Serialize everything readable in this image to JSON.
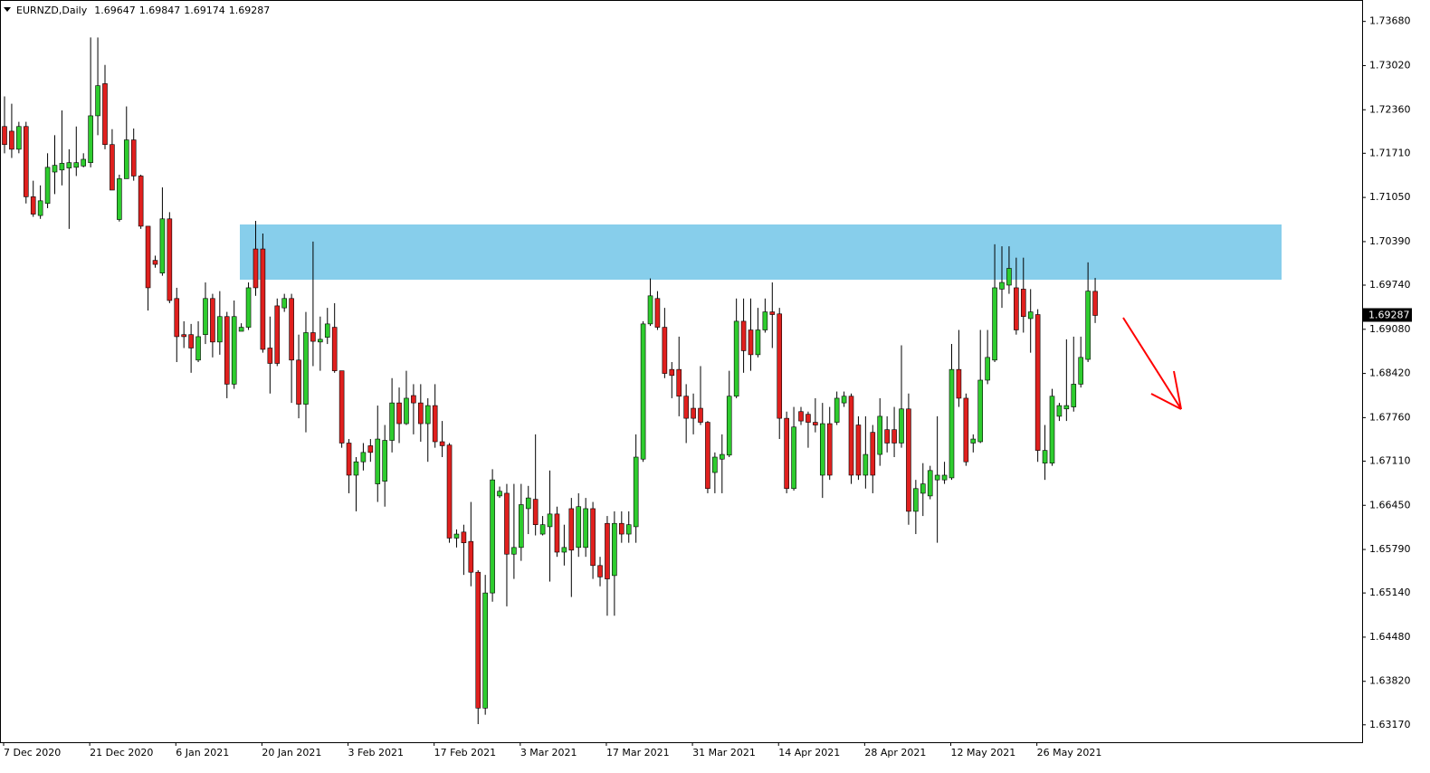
{
  "chart_data": {
    "type": "candlestick",
    "title": "EURNZD,Daily",
    "categories": [
      "7 Dec 2020",
      null,
      null,
      null,
      null,
      null,
      null,
      null,
      null,
      null,
      null,
      null,
      "21 Dec 2020",
      null,
      null,
      null,
      null,
      null,
      null,
      null,
      null,
      null,
      null,
      null,
      "6 Jan 2021",
      null,
      null,
      null,
      null,
      null,
      null,
      null,
      null,
      null,
      null,
      null,
      "20 Jan 2021",
      null,
      null,
      null,
      null,
      null,
      null,
      null,
      null,
      null,
      null,
      null,
      "3 Feb 2021",
      null,
      null,
      null,
      null,
      null,
      null,
      null,
      null,
      null,
      null,
      null,
      "17 Feb 2021",
      null,
      null,
      null,
      null,
      null,
      null,
      null,
      null,
      null,
      null,
      null,
      "3 Mar 2021",
      null,
      null,
      null,
      null,
      null,
      null,
      null,
      null,
      null,
      null,
      null,
      "17 Mar 2021",
      null,
      null,
      null,
      null,
      null,
      null,
      null,
      null,
      null,
      null,
      null,
      "31 Mar 2021",
      null,
      null,
      null,
      null,
      null,
      null,
      null,
      null,
      null,
      null,
      null,
      "14 Apr 2021",
      null,
      null,
      null,
      null,
      null,
      null,
      null,
      null,
      null,
      null,
      null,
      "28 Apr 2021",
      null,
      null,
      null,
      null,
      null,
      null,
      null,
      null,
      null,
      null,
      null,
      "12 May 2021",
      null,
      null,
      null,
      null,
      null,
      null,
      null,
      null,
      null,
      null,
      null,
      "26 May 2021",
      null,
      null,
      null,
      null,
      null,
      null,
      null,
      null
    ],
    "open": [
      1.7211,
      1.7204,
      1.7177,
      1.7211,
      1.7106,
      1.7078,
      1.7096,
      1.7143,
      1.7146,
      1.7149,
      1.715,
      1.7152,
      1.7157,
      1.7227,
      1.7275,
      1.7184,
      1.7072,
      1.7133,
      1.7191,
      1.7137,
      1.7062,
      1.7011,
      1.6992,
      1.7073,
      1.6954,
      1.69,
      1.69,
      1.6862,
      1.69,
      1.6954,
      1.6889,
      1.6927,
      1.6826,
      1.6905,
      1.6911,
      1.7028,
      1.7028,
      1.688,
      1.6943,
      1.694,
      1.6954,
      1.6862,
      1.6796,
      1.6903,
      1.6889,
      1.6896,
      1.6911,
      1.6846,
      1.6738,
      1.669,
      1.671,
      1.6734,
      1.6677,
      1.6681,
      1.6742,
      1.6798,
      1.6767,
      1.6809,
      1.6798,
      1.6767,
      1.6794,
      1.674,
      1.6735,
      1.6596,
      1.6605,
      1.6591,
      1.6545,
      1.6342,
      1.6514,
      1.6659,
      1.6663,
      1.6572,
      1.6582,
      1.664,
      1.6654,
      1.6602,
      1.6613,
      1.6632,
      1.6575,
      1.664,
      1.6582,
      1.6582,
      1.664,
      1.6555,
      1.6618,
      1.654,
      1.6618,
      1.6602,
      1.6613,
      1.6714,
      1.6916,
      1.6954,
      1.6911,
      1.6848,
      1.6848,
      1.6808,
      1.679,
      1.679,
      1.6769,
      1.6694,
      1.6714,
      1.672,
      1.6808,
      1.692,
      1.6907,
      1.687,
      1.6907,
      1.6934,
      1.6931,
      1.6775,
      1.667,
      1.6785,
      1.6781,
      1.6769,
      1.669,
      1.6767,
      1.6769,
      1.6798,
      1.6808,
      1.6765,
      1.669,
      1.6754,
      1.6721,
      1.6758,
      1.6758,
      1.6738,
      1.6789,
      1.6636,
      1.6663,
      1.6659,
      1.6683,
      1.6683,
      1.6686,
      1.6848,
      1.6805,
      1.6738,
      1.674,
      1.6832,
      1.6862,
      1.6968,
      1.6974,
      1.697,
      1.6968,
      1.6924,
      1.693,
      1.6708,
      1.6708,
      1.6778,
      1.6789,
      1.6792,
      1.6826,
      1.6863,
      1.69647
    ],
    "high": [
      1.7256,
      1.7245,
      1.7218,
      1.7218,
      1.713,
      1.7123,
      1.7171,
      1.7198,
      1.7235,
      1.7177,
      1.7211,
      1.7171,
      1.7344,
      1.7344,
      1.7303,
      1.7207,
      1.7139,
      1.7241,
      1.7208,
      1.7139,
      1.7062,
      1.7018,
      1.712,
      1.7083,
      1.697,
      1.692,
      1.6916,
      1.692,
      1.6978,
      1.6961,
      1.6965,
      1.6934,
      1.6951,
      1.6917,
      1.6978,
      1.707,
      1.7051,
      1.6927,
      1.6954,
      1.6961,
      1.6961,
      1.69,
      1.6934,
      1.7039,
      1.6927,
      1.694,
      1.6947,
      1.6846,
      1.6744,
      1.6717,
      1.6738,
      1.6744,
      1.6794,
      1.6765,
      1.6835,
      1.6821,
      1.6846,
      1.6826,
      1.6826,
      1.6805,
      1.6826,
      1.6771,
      1.6738,
      1.6609,
      1.6616,
      1.665,
      1.6548,
      1.6541,
      1.6699,
      1.6673,
      1.6677,
      1.6677,
      1.6677,
      1.6674,
      1.6751,
      1.6629,
      1.6697,
      1.6643,
      1.6616,
      1.6656,
      1.6663,
      1.6656,
      1.665,
      1.6568,
      1.6629,
      1.6636,
      1.6636,
      1.6636,
      1.6751,
      1.692,
      1.6984,
      1.6965,
      1.694,
      1.6859,
      1.6897,
      1.6826,
      1.6812,
      1.6853,
      1.6771,
      1.6724,
      1.6751,
      1.6846,
      1.6954,
      1.6954,
      1.6954,
      1.694,
      1.6954,
      1.6978,
      1.694,
      1.6785,
      1.6792,
      1.6792,
      1.6785,
      1.6805,
      1.6798,
      1.6792,
      1.6815,
      1.6815,
      1.6812,
      1.6778,
      1.6778,
      1.6765,
      1.6805,
      1.6778,
      1.6792,
      1.6884,
      1.6812,
      1.6683,
      1.6708,
      1.6704,
      1.6778,
      1.671,
      1.6886,
      1.6907,
      1.6812,
      1.6751,
      1.6907,
      1.6907,
      1.7035,
      1.7032,
      1.7032,
      1.7015,
      1.7015,
      1.6968,
      1.6938,
      1.6765,
      1.6819,
      1.6798,
      1.6893,
      1.6897,
      1.6897,
      1.7008,
      1.69847
    ],
    "low": [
      1.7171,
      1.7164,
      1.7171,
      1.7096,
      1.7076,
      1.7073,
      1.7089,
      1.711,
      1.7123,
      1.7058,
      1.7137,
      1.715,
      1.715,
      1.7198,
      1.7177,
      1.7116,
      1.7069,
      1.7133,
      1.713,
      1.7058,
      1.6936,
      1.7,
      1.6988,
      1.6947,
      1.6859,
      1.688,
      1.6843,
      1.6859,
      1.6886,
      1.6866,
      1.687,
      1.6805,
      1.6819,
      1.6905,
      1.6907,
      1.6958,
      1.6873,
      1.6812,
      1.6853,
      1.6934,
      1.6798,
      1.6775,
      1.6754,
      1.6853,
      1.6846,
      1.6886,
      1.6843,
      1.6731,
      1.6663,
      1.6636,
      1.6697,
      1.671,
      1.665,
      1.6643,
      1.6724,
      1.6738,
      1.6765,
      1.6751,
      1.674,
      1.671,
      1.6731,
      1.6717,
      1.6589,
      1.6582,
      1.6541,
      1.6524,
      1.6318,
      1.6332,
      1.6501,
      1.6656,
      1.6494,
      1.6535,
      1.6562,
      1.6602,
      1.66,
      1.66,
      1.6531,
      1.6568,
      1.6555,
      1.6508,
      1.6568,
      1.6568,
      1.6535,
      1.6524,
      1.648,
      1.648,
      1.6589,
      1.6589,
      1.6589,
      1.671,
      1.6913,
      1.6907,
      1.6835,
      1.6805,
      1.6778,
      1.6738,
      1.6751,
      1.6765,
      1.6663,
      1.6663,
      1.6663,
      1.6717,
      1.6805,
      1.6843,
      1.6846,
      1.6866,
      1.6903,
      1.688,
      1.6744,
      1.6663,
      1.6667,
      1.6765,
      1.6731,
      1.6754,
      1.6656,
      1.6683,
      1.6765,
      1.6792,
      1.6677,
      1.6683,
      1.667,
      1.6663,
      1.6704,
      1.6724,
      1.6717,
      1.6731,
      1.6616,
      1.6602,
      1.6629,
      1.6654,
      1.6589,
      1.6677,
      1.6683,
      1.6792,
      1.6704,
      1.6724,
      1.6738,
      1.6826,
      1.6859,
      1.694,
      1.6961,
      1.69,
      1.6903,
      1.6873,
      1.671,
      1.6683,
      1.6704,
      1.6771,
      1.6771,
      1.6785,
      1.6821,
      1.6859,
      1.69174
    ],
    "close": [
      1.7184,
      1.7177,
      1.7211,
      1.7106,
      1.708,
      1.71,
      1.715,
      1.7153,
      1.7156,
      1.7157,
      1.7157,
      1.7162,
      1.7227,
      1.7272,
      1.7184,
      1.7116,
      1.7133,
      1.7191,
      1.7137,
      1.7062,
      1.697,
      1.7005,
      1.7073,
      1.6951,
      1.6897,
      1.6897,
      1.688,
      1.6897,
      1.6954,
      1.6889,
      1.6927,
      1.6826,
      1.6927,
      1.6911,
      1.697,
      1.697,
      1.6878,
      1.6857,
      1.6857,
      1.6954,
      1.6862,
      1.6796,
      1.6903,
      1.689,
      1.6893,
      1.6916,
      1.6846,
      1.6738,
      1.669,
      1.671,
      1.6724,
      1.6724,
      1.6744,
      1.6742,
      1.6798,
      1.6767,
      1.6805,
      1.6798,
      1.6767,
      1.6794,
      1.674,
      1.6734,
      1.6596,
      1.6602,
      1.6589,
      1.6545,
      1.6342,
      1.6514,
      1.6683,
      1.6666,
      1.6572,
      1.6582,
      1.6646,
      1.6656,
      1.6616,
      1.6616,
      1.6632,
      1.6575,
      1.6582,
      1.6578,
      1.6643,
      1.664,
      1.6555,
      1.6538,
      1.6535,
      1.6618,
      1.6602,
      1.6616,
      1.6717,
      1.6916,
      1.6958,
      1.6911,
      1.6842,
      1.6839,
      1.6808,
      1.6775,
      1.6775,
      1.6769,
      1.667,
      1.6717,
      1.6721,
      1.6808,
      1.692,
      1.6876,
      1.687,
      1.6907,
      1.6934,
      1.693,
      1.6775,
      1.667,
      1.6762,
      1.6771,
      1.6769,
      1.6765,
      1.6767,
      1.669,
      1.6805,
      1.6808,
      1.669,
      1.669,
      1.6721,
      1.669,
      1.6778,
      1.6738,
      1.6738,
      1.6789,
      1.6636,
      1.667,
      1.6677,
      1.6697,
      1.669,
      1.669,
      1.6848,
      1.6805,
      1.671,
      1.6744,
      1.6832,
      1.6866,
      1.697,
      1.6978,
      1.6999,
      1.6907,
      1.6927,
      1.6934,
      1.6727,
      1.6727,
      1.6808,
      1.6794,
      1.6794,
      1.6826,
      1.6866,
      1.6965,
      1.69287
    ],
    "up_color": "#2ecc2e",
    "down_color": "#e0201e",
    "wick_color": "#000000",
    "ylim": [
      1.6291,
      1.74
    ],
    "yticks": [
      {
        "value": 1.7368,
        "label": "1.73680"
      },
      {
        "value": 1.7302,
        "label": "1.73020"
      },
      {
        "value": 1.7236,
        "label": "1.72360"
      },
      {
        "value": 1.7171,
        "label": "1.71710"
      },
      {
        "value": 1.7105,
        "label": "1.71050"
      },
      {
        "value": 1.7039,
        "label": "1.70390"
      },
      {
        "value": 1.6974,
        "label": "1.69740"
      },
      {
        "value": 1.6908,
        "label": "1.69080"
      },
      {
        "value": 1.6842,
        "label": "1.68420"
      },
      {
        "value": 1.6776,
        "label": "1.67760"
      },
      {
        "value": 1.6711,
        "label": "1.67110"
      },
      {
        "value": 1.6645,
        "label": "1.66450"
      },
      {
        "value": 1.6579,
        "label": "1.65790"
      },
      {
        "value": 1.6514,
        "label": "1.65140"
      },
      {
        "value": 1.6448,
        "label": "1.64480"
      },
      {
        "value": 1.6382,
        "label": "1.63820"
      },
      {
        "value": 1.6317,
        "label": "1.63170"
      }
    ],
    "grid": false
  }
}
